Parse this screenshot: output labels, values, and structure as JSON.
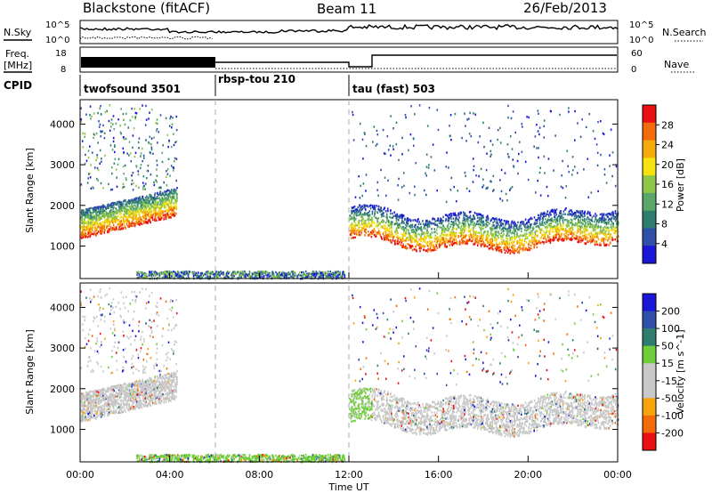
{
  "header": {
    "station": "Blackstone (fitACF)",
    "beam": "Beam 11",
    "date": "26/Feb/2013"
  },
  "colors": {
    "power_scale": [
      "#1a16d8",
      "#2f4fa8",
      "#2f7d6e",
      "#5aa869",
      "#8fc648",
      "#f5e20f",
      "#f7ab0a",
      "#f26a0a",
      "#e81010"
    ],
    "velocity_scale": [
      "#1a16d8",
      "#2f4fa8",
      "#2f7d6e",
      "#6fcd3a",
      "#c8c8c8",
      "#c8c8c8",
      "#f7a30c",
      "#f26a0a",
      "#e81010"
    ],
    "ground_scatter": "#c8c8c8"
  },
  "top_panel": {
    "left_label": "N.Sky",
    "right_label": "N.Search",
    "left_ticks": [
      "10^5",
      "10^0"
    ],
    "right_ticks": [
      "10^5",
      "10^0"
    ]
  },
  "freq_panel": {
    "left_label_line1": "Freq.",
    "left_label_line2": "[MHz]",
    "right_label": "Nave",
    "left_ticks": [
      "18",
      "8"
    ],
    "right_ticks": [
      "60",
      "0"
    ]
  },
  "cpid": {
    "label": "CPID",
    "modes": [
      {
        "name": "twofsound 3501",
        "start_hour": 0,
        "end_hour": 6
      },
      {
        "name": "rbsp-tou 210",
        "start_hour": 6,
        "end_hour": 12
      },
      {
        "name": "tau (fast) 503",
        "start_hour": 12,
        "end_hour": 24
      }
    ]
  },
  "chart_data": [
    {
      "type": "heatmap",
      "title": "",
      "xlabel": "",
      "ylabel": "Slant Range [km]",
      "xlim": [
        0,
        24
      ],
      "ylim": [
        200,
        4600
      ],
      "y_ticks": [
        1000,
        2000,
        3000,
        4000
      ],
      "colorbar": {
        "label": "Power [dB]",
        "tick_labels": [
          "4",
          "8",
          "12",
          "16",
          "20",
          "24",
          "28"
        ],
        "range": [
          0,
          30
        ]
      },
      "scatter_bands": [
        {
          "description": "daytime echo band",
          "hours": [
            0,
            4.2
          ],
          "range_km": [
            1100,
            2300
          ]
        },
        {
          "description": "ground scatter",
          "hours": [
            2.5,
            11.8
          ],
          "range_km": [
            200,
            400
          ]
        },
        {
          "description": "post-midday echo band",
          "hours": [
            12,
            24
          ],
          "range_km": [
            800,
            2000
          ]
        }
      ]
    },
    {
      "type": "heatmap",
      "title": "",
      "xlabel": "Time UT",
      "ylabel": "Slant Range [km]",
      "xlim": [
        0,
        24
      ],
      "ylim": [
        200,
        4600
      ],
      "x_ticks": [
        "00:00",
        "04:00",
        "08:00",
        "12:00",
        "16:00",
        "20:00",
        "00:00"
      ],
      "y_ticks": [
        1000,
        2000,
        3000,
        4000
      ],
      "colorbar": {
        "label": "Velocity [m s^-1]",
        "tick_labels": [
          "200",
          "100",
          "50",
          "15",
          "-15",
          "-50",
          "-100",
          "-200"
        ],
        "range": [
          -250,
          250
        ]
      }
    }
  ]
}
